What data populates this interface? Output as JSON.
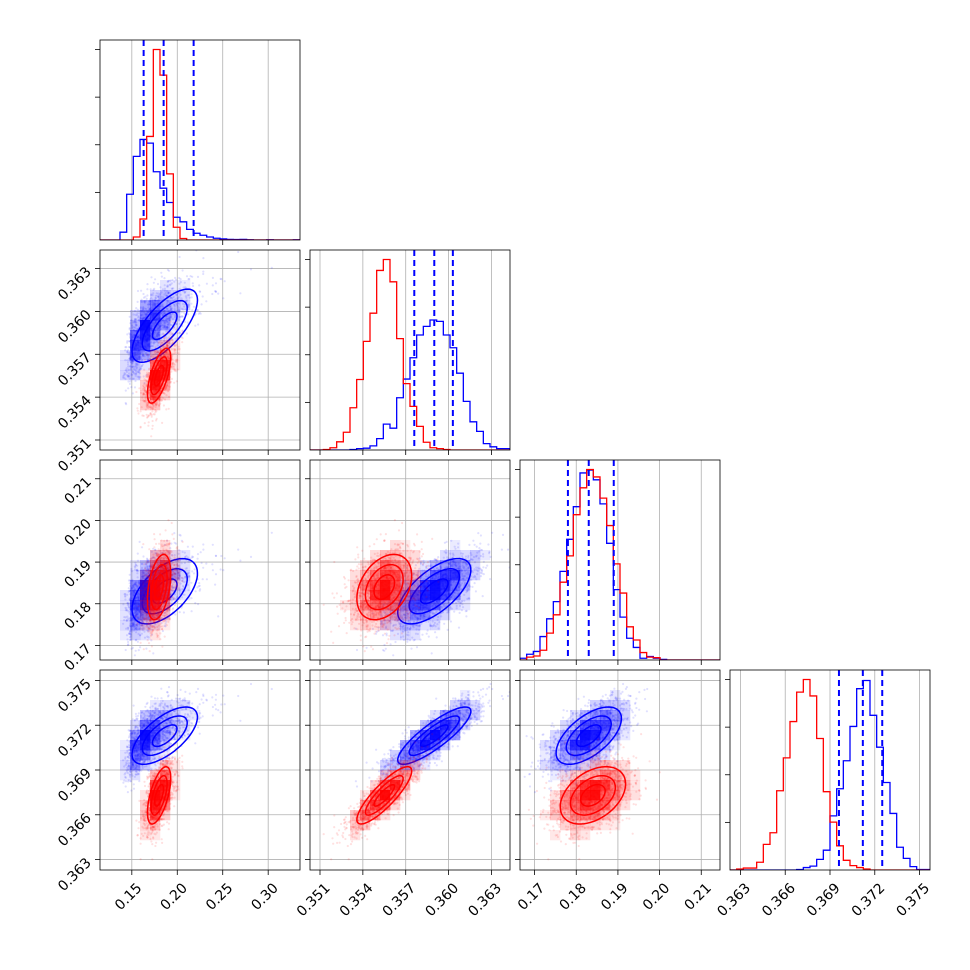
{
  "colors": {
    "blue": "#0000ff",
    "red": "#ff0000",
    "grid": "#b0b0b0"
  },
  "chart_data": {
    "type": "corner",
    "title": "",
    "grid": true,
    "dims": [
      {
        "lim": [
          0.115,
          0.335
        ],
        "ticks": [
          0.15,
          0.2,
          0.25,
          0.3
        ],
        "labels": [
          "0.15",
          "0.20",
          "0.25",
          "0.30"
        ]
      },
      {
        "lim": [
          0.3503,
          0.3643
        ],
        "ticks": [
          0.351,
          0.354,
          0.357,
          0.36,
          0.363
        ],
        "labels": [
          "0.351",
          "0.354",
          "0.357",
          "0.360",
          "0.363"
        ]
      },
      {
        "lim": [
          0.1665,
          0.2145
        ],
        "ticks": [
          0.17,
          0.18,
          0.19,
          0.2,
          0.21
        ],
        "labels": [
          "0.17",
          "0.18",
          "0.19",
          "0.20",
          "0.21"
        ]
      },
      {
        "lim": [
          0.3623,
          0.3757
        ],
        "ticks": [
          0.363,
          0.366,
          0.369,
          0.372,
          0.375
        ],
        "labels": [
          "0.363",
          "0.366",
          "0.369",
          "0.372",
          "0.375"
        ]
      }
    ],
    "series": [
      {
        "color": "#0000ff",
        "mean": [
          0.17,
          0.359,
          0.183,
          0.3713
        ],
        "sd": [
          0.018,
          0.0016,
          0.0049,
          0.0012
        ],
        "corr": [
          [
            1,
            0.7,
            0.55,
            0.65
          ],
          [
            0.7,
            1,
            0.65,
            0.85
          ],
          [
            0.55,
            0.65,
            1,
            0.6
          ],
          [
            0.65,
            0.85,
            0.6,
            1
          ]
        ],
        "skew": [
          0.9,
          0,
          0,
          0
        ],
        "quantiles": [
          [
            0.163,
            0.185,
            0.218
          ],
          [
            0.3576,
            0.359,
            0.3603
          ],
          [
            0.178,
            0.183,
            0.189
          ],
          [
            0.3696,
            0.3712,
            0.3725
          ]
        ]
      },
      {
        "color": "#ff0000",
        "mean": [
          0.18,
          0.3555,
          0.184,
          0.3673
        ],
        "sd": [
          0.008,
          0.0012,
          0.0049,
          0.0012
        ],
        "corr": [
          [
            1,
            0.65,
            0.4,
            0.6
          ],
          [
            0.65,
            1,
            0.35,
            0.85
          ],
          [
            0.4,
            0.35,
            1,
            0.4
          ],
          [
            0.6,
            0.85,
            0.4,
            1
          ]
        ],
        "skew": [
          0,
          0,
          0,
          0
        ],
        "quantiles": []
      }
    ]
  }
}
